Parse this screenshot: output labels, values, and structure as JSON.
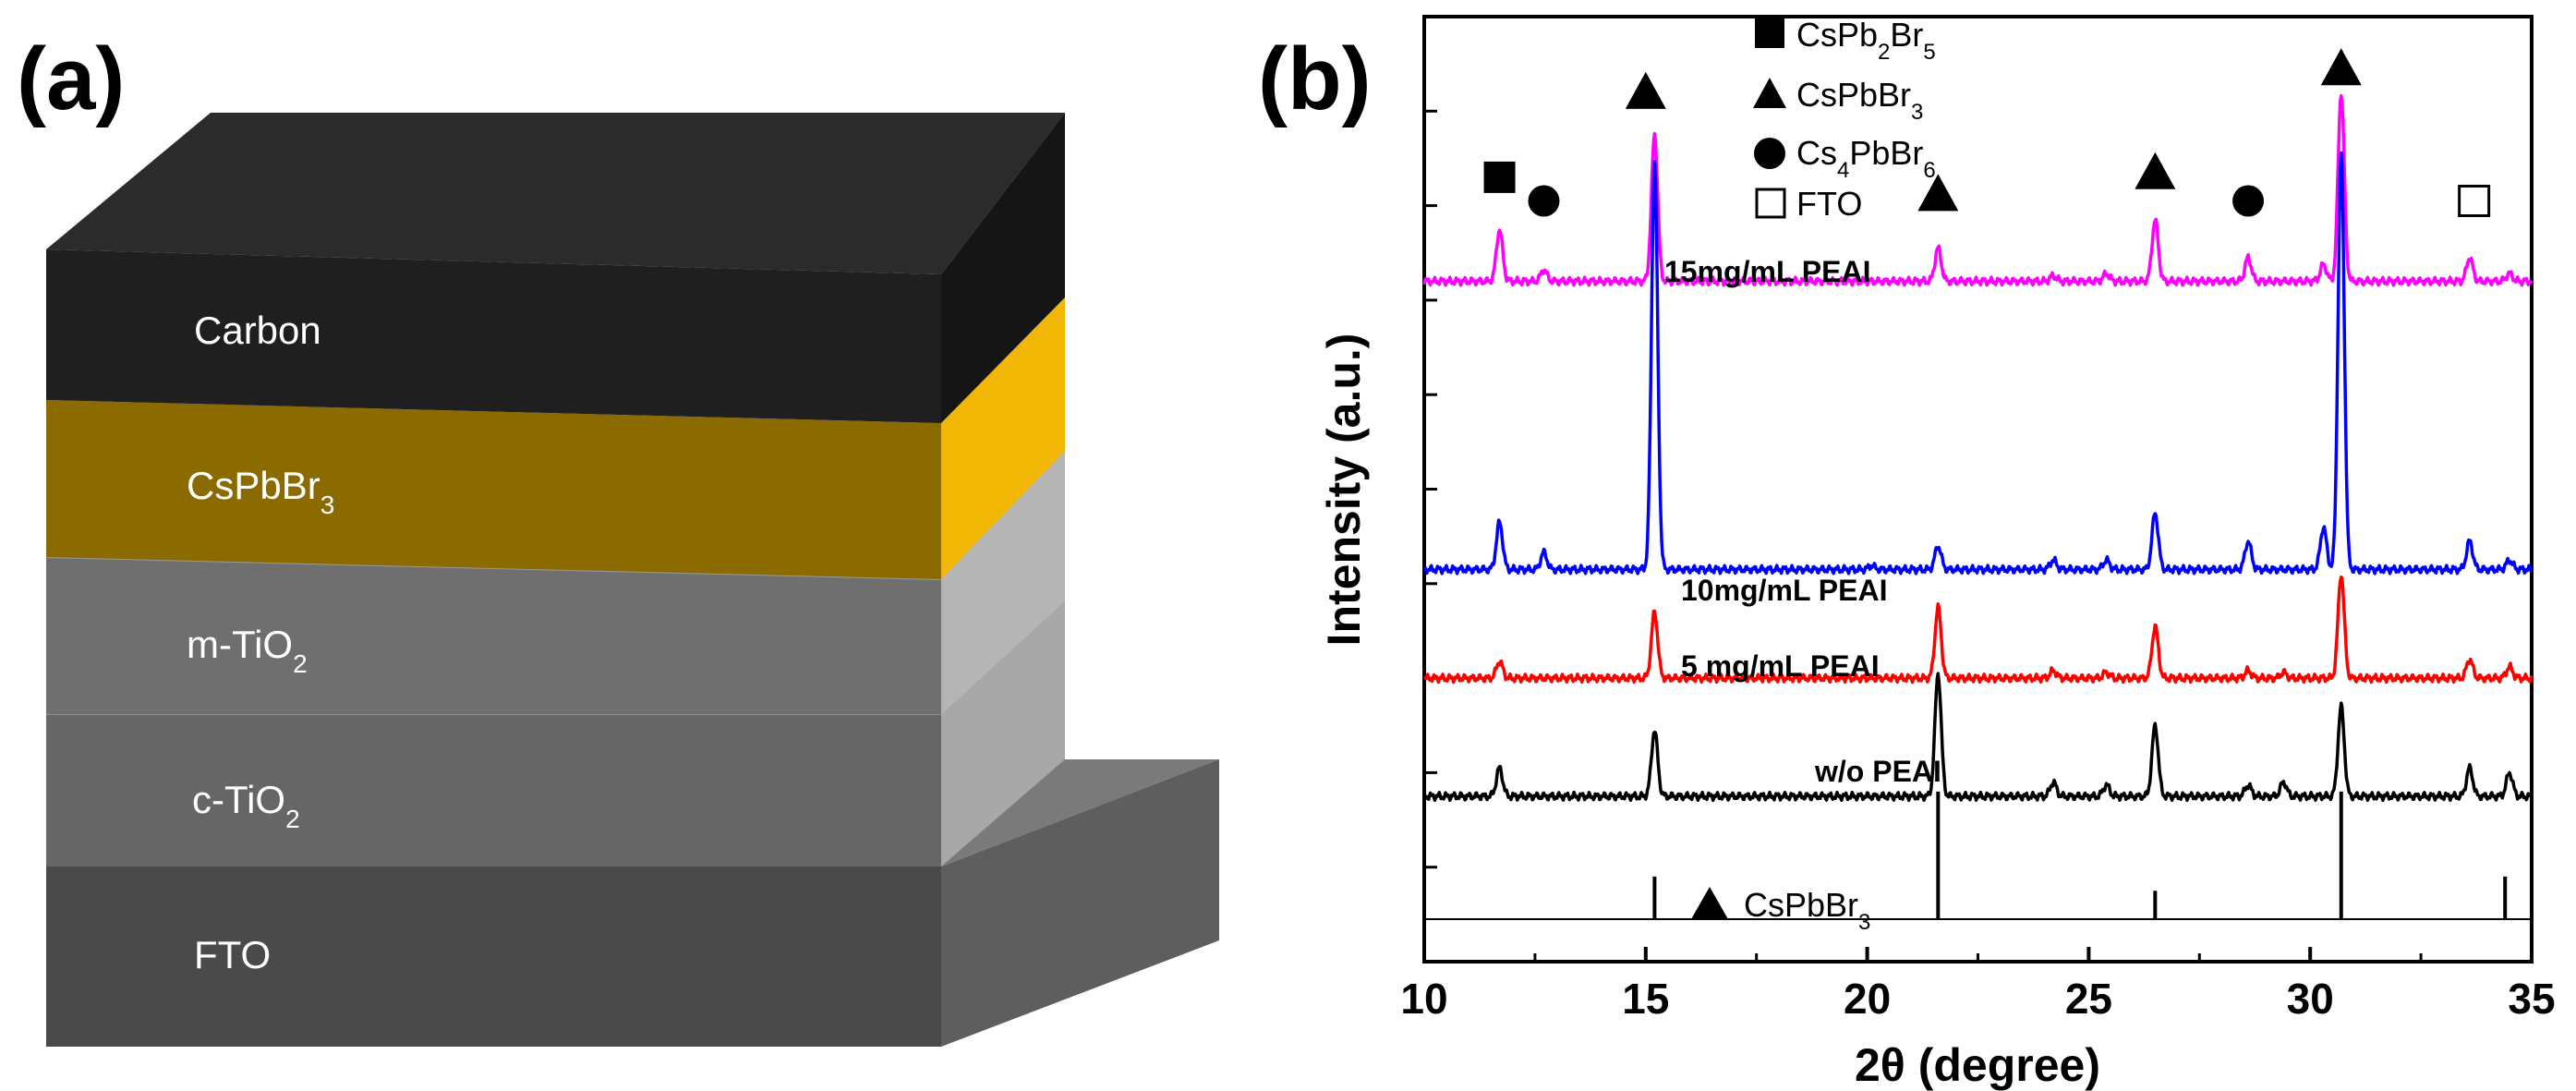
{
  "panel_a": {
    "label": "(a)",
    "layers": [
      {
        "id": "carbon",
        "base": "Carbon",
        "sub": ""
      },
      {
        "id": "cspbbr3",
        "base": "CsPbBr",
        "sub": "3"
      },
      {
        "id": "mtio2",
        "base": "m-TiO",
        "sub": "2"
      },
      {
        "id": "ctio2",
        "base": "c-TiO",
        "sub": "2"
      },
      {
        "id": "fto",
        "base": "FTO",
        "sub": ""
      }
    ],
    "colors": {
      "carbon_front": "#1f1f1f",
      "carbon_top": "#2b2b2b",
      "carbon_side": "#151515",
      "perov_front": "#8b6a00",
      "perov_side": "#f2b705",
      "mtio2_front": "#6f6f6f",
      "mtio2_side": "#b5b5b5",
      "ctio2_front": "#666666",
      "ctio2_side": "#a8a8a8",
      "fto_front": "#4a4a4a",
      "fto_top": "#7a7a7a",
      "fto_side": "#5e5e5e"
    }
  },
  "panel_b": {
    "label": "(b)"
  },
  "chart_data": {
    "type": "line",
    "title": "",
    "xlabel": "2θ (degree)",
    "ylabel": "Intensity (a.u.)",
    "xlim": [
      10,
      35
    ],
    "xticks": [
      10,
      15,
      20,
      25,
      30,
      35
    ],
    "yticks_visible": false,
    "legend": {
      "position": "top-center",
      "entries": [
        {
          "marker": "filled-square",
          "base": "CsPb",
          "sub1": "2",
          "mid": "Br",
          "sub2": "5"
        },
        {
          "marker": "filled-triangle",
          "base": "CsPbBr",
          "sub1": "3",
          "mid": "",
          "sub2": ""
        },
        {
          "marker": "filled-circle",
          "base": "Cs",
          "sub1": "4",
          "mid": "PbBr",
          "sub2": "6"
        },
        {
          "marker": "open-square",
          "base": "FTO",
          "sub1": "",
          "mid": "",
          "sub2": ""
        }
      ]
    },
    "series": [
      {
        "name": "15mg/mL PEAI",
        "color": "#ff00ff",
        "offset": 0.72,
        "peaks": [
          [
            11.7,
            0.055
          ],
          [
            12.7,
            0.012
          ],
          [
            15.2,
            0.155
          ],
          [
            21.6,
            0.035
          ],
          [
            24.2,
            0.006
          ],
          [
            25.4,
            0.008
          ],
          [
            26.5,
            0.065
          ],
          [
            28.6,
            0.025
          ],
          [
            30.3,
            0.018
          ],
          [
            30.7,
            0.2
          ],
          [
            33.6,
            0.025
          ],
          [
            34.5,
            0.008
          ]
        ]
      },
      {
        "name": "10mg/mL PEAI",
        "color": "#0000ff",
        "offset": 0.415,
        "peaks": [
          [
            11.7,
            0.05
          ],
          [
            12.7,
            0.018
          ],
          [
            15.2,
            0.43
          ],
          [
            20.1,
            0.004
          ],
          [
            21.6,
            0.025
          ],
          [
            24.2,
            0.01
          ],
          [
            25.4,
            0.01
          ],
          [
            26.5,
            0.06
          ],
          [
            28.6,
            0.03
          ],
          [
            30.3,
            0.045
          ],
          [
            30.7,
            0.44
          ],
          [
            33.6,
            0.03
          ],
          [
            34.5,
            0.01
          ]
        ]
      },
      {
        "name": "5 mg/mL PEAI",
        "color": "#ff0000",
        "offset": 0.3,
        "peaks": [
          [
            11.7,
            0.018
          ],
          [
            15.2,
            0.07
          ],
          [
            21.6,
            0.075
          ],
          [
            24.2,
            0.008
          ],
          [
            25.4,
            0.006
          ],
          [
            26.5,
            0.055
          ],
          [
            28.6,
            0.008
          ],
          [
            29.4,
            0.006
          ],
          [
            30.7,
            0.11
          ],
          [
            33.6,
            0.02
          ],
          [
            34.5,
            0.012
          ]
        ]
      },
      {
        "name": "w/o PEAI",
        "color": "#000000",
        "offset": 0.175,
        "peaks": [
          [
            11.7,
            0.03
          ],
          [
            15.2,
            0.07
          ],
          [
            21.6,
            0.13
          ],
          [
            24.2,
            0.015
          ],
          [
            25.4,
            0.012
          ],
          [
            26.5,
            0.075
          ],
          [
            28.6,
            0.012
          ],
          [
            29.4,
            0.015
          ],
          [
            30.7,
            0.095
          ],
          [
            33.6,
            0.03
          ],
          [
            34.5,
            0.025
          ]
        ]
      }
    ],
    "reference": {
      "name": "CsPbBr3",
      "base": "CsPbBr",
      "sub": "3",
      "baseline": 0.045,
      "sticks": [
        [
          15.2,
          0.045
        ],
        [
          21.6,
          0.135
        ],
        [
          26.5,
          0.03
        ],
        [
          30.7,
          0.135
        ],
        [
          34.4,
          0.045
        ]
      ]
    },
    "phase_markers": [
      {
        "type": "filled-square",
        "x": 11.7,
        "y": 0.83
      },
      {
        "type": "filled-circle",
        "x": 12.7,
        "y": 0.805
      },
      {
        "type": "filled-triangle",
        "x": 15.0,
        "y": 0.92
      },
      {
        "type": "filled-triangle",
        "x": 21.6,
        "y": 0.812
      },
      {
        "type": "filled-triangle",
        "x": 26.5,
        "y": 0.835
      },
      {
        "type": "filled-circle",
        "x": 28.6,
        "y": 0.805
      },
      {
        "type": "filled-triangle",
        "x": 30.7,
        "y": 0.945
      },
      {
        "type": "open-square",
        "x": 33.7,
        "y": 0.805
      }
    ]
  }
}
